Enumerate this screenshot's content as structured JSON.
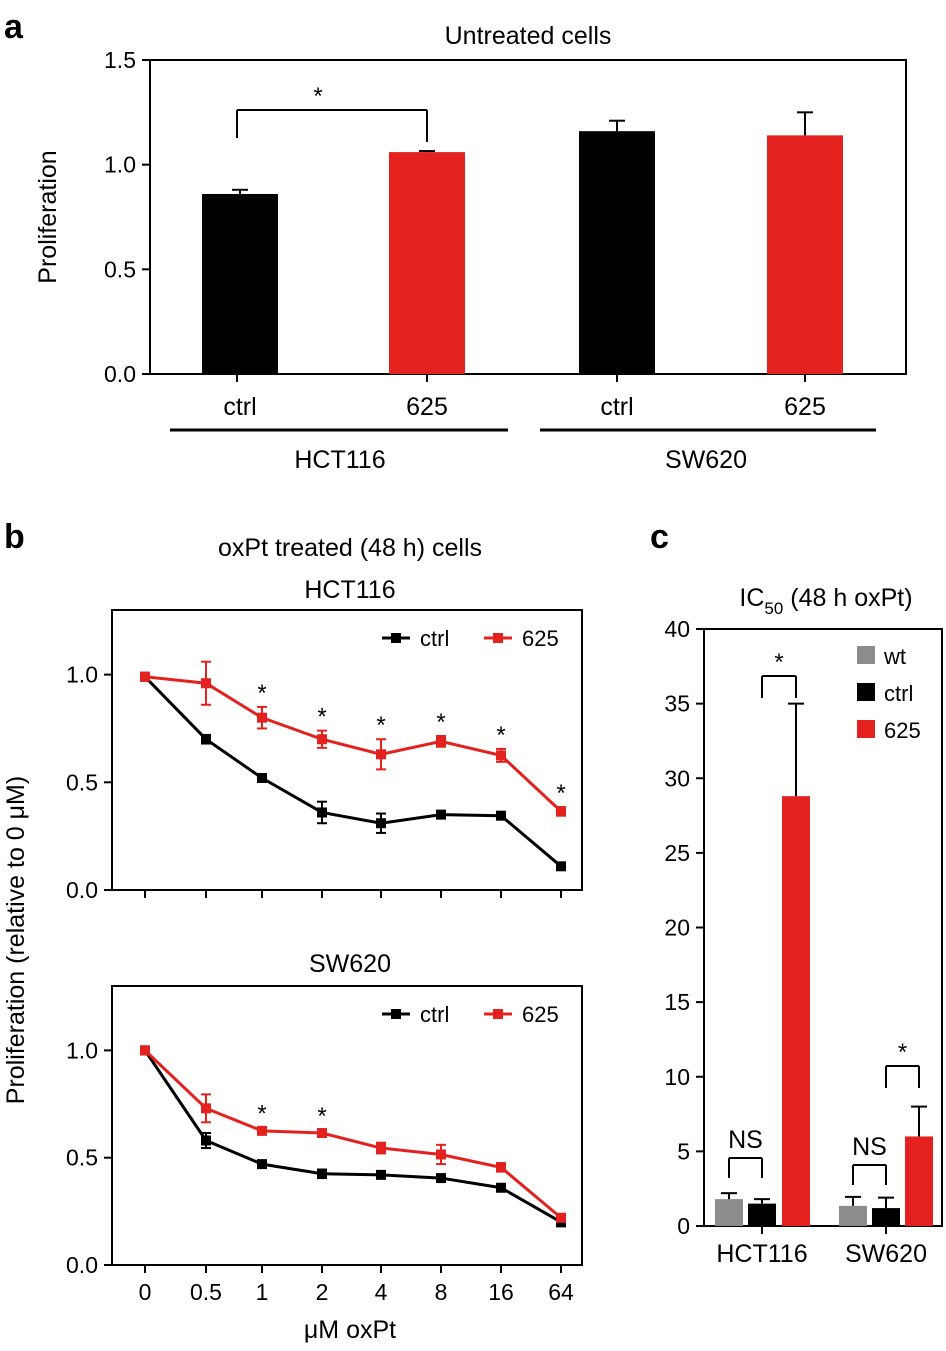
{
  "panels": {
    "a": "a",
    "b": "b",
    "c": "c"
  },
  "colors": {
    "black": "#000000",
    "red": "#e3221f",
    "gray": "#8c8c8c"
  },
  "chart_data": [
    {
      "id": "a",
      "type": "bar",
      "title": "Untreated cells",
      "ylabel": "Proliferation",
      "ylim": [
        0,
        1.5
      ],
      "yticks": [
        0.0,
        0.5,
        1.0,
        1.5
      ],
      "ytick_labels": [
        "0.0",
        "0.5",
        "1.0",
        "1.5"
      ],
      "groups": [
        "HCT116",
        "SW620"
      ],
      "categories": [
        "ctrl",
        "625",
        "ctrl",
        "625"
      ],
      "values": [
        0.86,
        1.06,
        1.16,
        1.14
      ],
      "errors": [
        0.02,
        0.005,
        0.05,
        0.11
      ],
      "colors": [
        "black",
        "red",
        "black",
        "red"
      ],
      "significance": [
        {
          "between": [
            0,
            1
          ],
          "label": "*"
        }
      ]
    },
    {
      "id": "b",
      "type": "line",
      "title": "oxPt treated (48 h) cells",
      "ylabel": "Proliferation (relative to 0 μM)",
      "xlabel": "μM oxPt",
      "x": [
        "0",
        "0.5",
        "1",
        "2",
        "4",
        "8",
        "16",
        "64"
      ],
      "ylim": [
        0,
        1.3
      ],
      "yticks": [
        0.0,
        0.5,
        1.0
      ],
      "ytick_labels": [
        "0.0",
        "0.5",
        "1.0"
      ],
      "legend": [
        "ctrl",
        "625"
      ],
      "subplots": [
        {
          "title": "HCT116",
          "series": [
            {
              "name": "ctrl",
              "color": "black",
              "values": [
                0.99,
                0.7,
                0.52,
                0.36,
                0.31,
                0.35,
                0.345,
                0.11
              ],
              "errors": [
                0.01,
                0.02,
                0.015,
                0.05,
                0.045,
                0.015,
                0.015,
                0.01
              ]
            },
            {
              "name": "625",
              "color": "red",
              "values": [
                0.99,
                0.96,
                0.8,
                0.7,
                0.63,
                0.69,
                0.625,
                0.365
              ],
              "errors": [
                0.01,
                0.1,
                0.05,
                0.04,
                0.07,
                0.025,
                0.03,
                0.02
              ]
            }
          ],
          "stars": [
            2,
            3,
            4,
            5,
            6,
            7
          ],
          "star_label": "*"
        },
        {
          "title": "SW620",
          "series": [
            {
              "name": "ctrl",
              "color": "black",
              "values": [
                1.0,
                0.58,
                0.47,
                0.425,
                0.42,
                0.405,
                0.36,
                0.2
              ],
              "errors": [
                0.01,
                0.035,
                0.015,
                0.02,
                0.015,
                0.015,
                0.015,
                0.02
              ]
            },
            {
              "name": "625",
              "color": "red",
              "values": [
                1.0,
                0.73,
                0.625,
                0.615,
                0.545,
                0.515,
                0.455,
                0.22
              ],
              "errors": [
                0.01,
                0.065,
                0.015,
                0.015,
                0.025,
                0.045,
                0.02,
                0.01
              ]
            }
          ],
          "stars": [
            2,
            3
          ],
          "star_label": "*"
        }
      ]
    },
    {
      "id": "c",
      "type": "bar",
      "title": "IC",
      "title_sub": "50",
      "title_rest": " (48 h oxPt)",
      "ylim": [
        0,
        40
      ],
      "yticks": [
        0,
        5,
        10,
        15,
        20,
        25,
        30,
        35,
        40
      ],
      "ytick_labels": [
        "0",
        "5",
        "10",
        "15",
        "20",
        "25",
        "30",
        "35",
        "40"
      ],
      "legend": [
        {
          "name": "wt",
          "color": "gray"
        },
        {
          "name": "ctrl",
          "color": "black"
        },
        {
          "name": "625",
          "color": "red"
        }
      ],
      "groups": [
        {
          "name": "HCT116",
          "values": [
            1.8,
            1.5,
            28.8
          ],
          "errors": [
            0.4,
            0.3,
            6.2
          ],
          "brackets": [
            {
              "between": [
                0,
                1
              ],
              "label": "NS"
            },
            {
              "between": [
                1,
                2
              ],
              "label": "*"
            }
          ]
        },
        {
          "name": "SW620",
          "values": [
            1.35,
            1.2,
            6.0
          ],
          "errors": [
            0.6,
            0.7,
            2.0
          ],
          "brackets": [
            {
              "between": [
                0,
                1
              ],
              "label": "NS"
            },
            {
              "between": [
                1,
                2
              ],
              "label": "*"
            }
          ]
        }
      ]
    }
  ]
}
